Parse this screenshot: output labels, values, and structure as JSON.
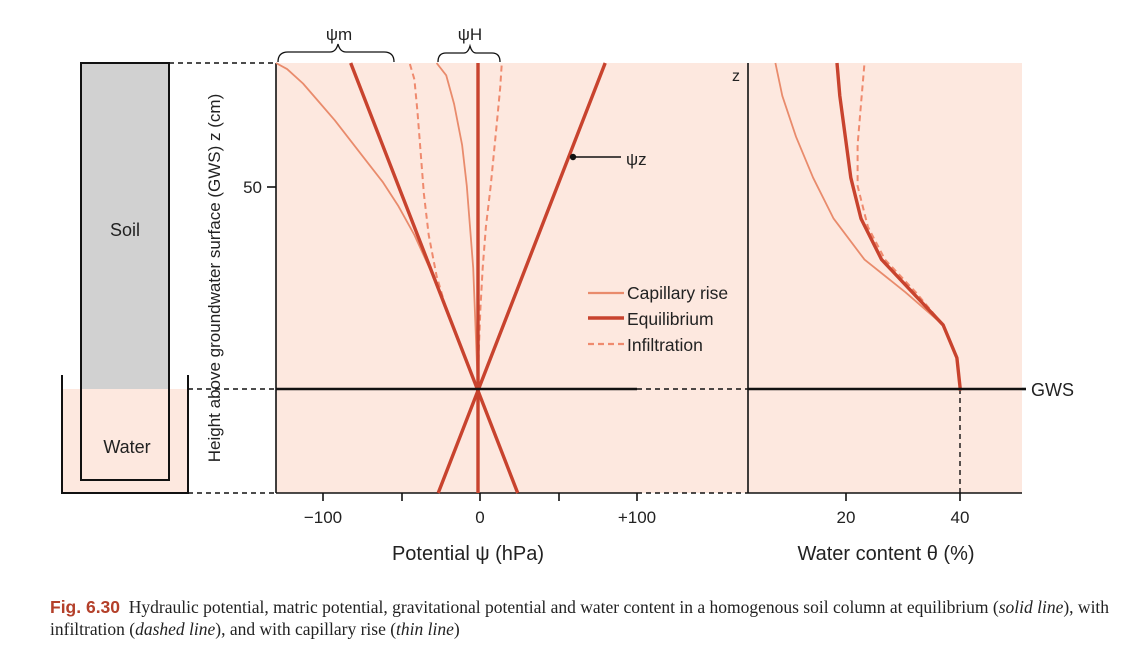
{
  "figure": {
    "caption_label": "Fig. 6.30",
    "caption_parts": [
      "Hydraulic potential, matric potential, gravitational potential and water content in a homogenous soil column at equilibrium (",
      "solid line",
      "), with infiltration (",
      "dashed line",
      "), and with capillary rise (",
      "thin line",
      ")"
    ]
  },
  "column": {
    "soil_label": "Soil",
    "water_label": "Water"
  },
  "colors": {
    "background": "#fde8df",
    "soil": "#d1d1d1",
    "equilibrium": "#c8432e",
    "capillary": "#e98b6c",
    "infiltration": "#ef8a6e",
    "axis": "#111111"
  },
  "chart_data": [
    {
      "type": "line",
      "xlabel": "Potential ψ (hPa)",
      "ylabel": "Height above groundwater surface (GWS) z (cm)",
      "xlim": [
        -127,
        100
      ],
      "ylim": [
        -25,
        80
      ],
      "xticks": [
        {
          "value": -100,
          "label": "−100"
        },
        {
          "value": 0,
          "label": "0"
        },
        {
          "value": 100,
          "label": "+100"
        }
      ],
      "yticks": [
        {
          "value": 50,
          "label": "50"
        }
      ],
      "legend": {
        "placement": "center-right",
        "entries": [
          "Capillary rise",
          "Equilibrium",
          "Infiltration"
        ]
      },
      "annotations": {
        "psi_m": "ψm",
        "psi_h": "ψH",
        "psi_z": "ψz",
        "z_axis": "z"
      },
      "series": [
        {
          "name": "Equilibrium",
          "role": "psi_z",
          "style": "solid",
          "points": [
            [
              -25,
              -25
            ],
            [
              80,
              80
            ]
          ]
        },
        {
          "name": "Equilibrium",
          "role": "psi_m",
          "style": "solid",
          "points": [
            [
              25,
              -25
            ],
            [
              -80,
              80
            ]
          ]
        },
        {
          "name": "Equilibrium",
          "role": "psi_h",
          "style": "solid",
          "points": [
            [
              0,
              -25
            ],
            [
              0,
              80
            ]
          ]
        },
        {
          "name": "Capillary rise",
          "role": "psi_m",
          "style": "thin",
          "points": [
            [
              0,
              0
            ],
            [
              -10,
              10
            ],
            [
              -20,
              20
            ],
            [
              -30,
              29.5
            ],
            [
              -40,
              38
            ],
            [
              -50,
              45
            ],
            [
              -60,
              51
            ],
            [
              -70,
              56
            ],
            [
              -80,
              61
            ],
            [
              -90,
              66
            ],
            [
              -100,
              70.5
            ],
            [
              -110,
              75
            ],
            [
              -120,
              78.5
            ],
            [
              -127,
              80
            ]
          ]
        },
        {
          "name": "Capillary rise",
          "role": "psi_h",
          "style": "thin",
          "points": [
            [
              0,
              0
            ],
            [
              -1,
              10
            ],
            [
              -2,
              20
            ],
            [
              -3,
              30
            ],
            [
              -5,
              40
            ],
            [
              -7,
              50
            ],
            [
              -10,
              60
            ],
            [
              -15,
              70
            ],
            [
              -20,
              77
            ],
            [
              -26,
              80
            ]
          ]
        },
        {
          "name": "Infiltration",
          "role": "psi_m",
          "style": "dashed",
          "points": [
            [
              0,
              0
            ],
            [
              -10,
              10
            ],
            [
              -20,
              20
            ],
            [
              -26,
              28
            ],
            [
              -31,
              38
            ],
            [
              -34,
              48
            ],
            [
              -36,
              58
            ],
            [
              -38,
              68
            ],
            [
              -40,
              76
            ],
            [
              -43,
              80
            ]
          ]
        },
        {
          "name": "Infiltration",
          "role": "psi_h",
          "style": "dashed",
          "points": [
            [
              0,
              0
            ],
            [
              0.5,
              10
            ],
            [
              1.5,
              20
            ],
            [
              3,
              30
            ],
            [
              5,
              40
            ],
            [
              8,
              50
            ],
            [
              10,
              58
            ],
            [
              12,
              66
            ],
            [
              14,
              74
            ],
            [
              15,
              80
            ]
          ]
        }
      ]
    },
    {
      "type": "line",
      "xlabel": "Water content θ (%)",
      "ylabel": "",
      "xlim": [
        9,
        49
      ],
      "ylim": [
        -25,
        80
      ],
      "xticks": [
        {
          "value": 20,
          "label": "20"
        },
        {
          "value": 40,
          "label": "40"
        }
      ],
      "gws_label": "GWS",
      "series": [
        {
          "name": "Equilibrium",
          "style": "solid",
          "points": [
            [
              40,
              0
            ],
            [
              39.5,
              8
            ],
            [
              37.5,
              16
            ],
            [
              33,
              24
            ],
            [
              28.5,
              32
            ],
            [
              25.5,
              42
            ],
            [
              24,
              52
            ],
            [
              23.2,
              62
            ],
            [
              22.4,
              72
            ],
            [
              22,
              80
            ]
          ]
        },
        {
          "name": "Capillary rise",
          "style": "thin",
          "points": [
            [
              40,
              0
            ],
            [
              39.5,
              8
            ],
            [
              37.5,
              16
            ],
            [
              32,
              24
            ],
            [
              26,
              32
            ],
            [
              21.5,
              42
            ],
            [
              18.5,
              52
            ],
            [
              16,
              62
            ],
            [
              14,
              72
            ],
            [
              13,
              80
            ]
          ]
        },
        {
          "name": "Infiltration",
          "style": "dashed",
          "points": [
            [
              40,
              0
            ],
            [
              39.5,
              8
            ],
            [
              37.5,
              16
            ],
            [
              33.5,
              24
            ],
            [
              29,
              32
            ],
            [
              26.5,
              40
            ],
            [
              25,
              50
            ],
            [
              25,
              60
            ],
            [
              25.5,
              70
            ],
            [
              26,
              80
            ]
          ]
        }
      ]
    }
  ]
}
